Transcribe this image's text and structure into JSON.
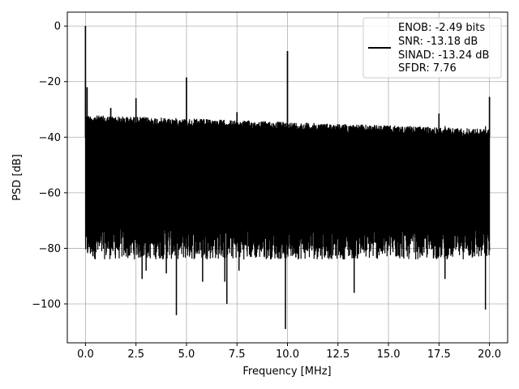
{
  "chart_data": {
    "type": "line",
    "xlabel": "Frequency [MHz]",
    "ylabel": "PSD [dB]",
    "xlim": [
      -0.9,
      20.9
    ],
    "ylim": [
      -114,
      5
    ],
    "xticks": [
      0.0,
      2.5,
      5.0,
      7.5,
      10.0,
      12.5,
      15.0,
      17.5,
      20.0
    ],
    "xtick_labels": [
      "0.0",
      "2.5",
      "5.0",
      "7.5",
      "10.0",
      "12.5",
      "15.0",
      "17.5",
      "20.0"
    ],
    "yticks": [
      0,
      -20,
      -40,
      -60,
      -80,
      -100
    ],
    "ytick_labels": [
      "0",
      "−20",
      "−40",
      "−60",
      "−80",
      "−100"
    ],
    "grid": true,
    "legend_position": "top-right",
    "legend_lines": [
      "ENOB: -2.49 bits",
      "SNR: -13.18 dB",
      "SINAD: -13.24 dB",
      "SFDR: 7.76"
    ],
    "series": [
      {
        "color": "#000000",
        "x_range": [
          0.0,
          20.0
        ],
        "noise_ceiling_start": -32,
        "noise_ceiling_end": -37,
        "noise_floor_typical": -78,
        "spikes": [
          {
            "x": 0.0,
            "y": 0
          },
          {
            "x": 0.08,
            "y": -22
          },
          {
            "x": 1.25,
            "y": -29.5
          },
          {
            "x": 2.5,
            "y": -26
          },
          {
            "x": 5.0,
            "y": -18.5
          },
          {
            "x": 7.5,
            "y": -31
          },
          {
            "x": 10.0,
            "y": -9
          },
          {
            "x": 17.5,
            "y": -31.5
          },
          {
            "x": 20.0,
            "y": -25.5
          }
        ],
        "dips": [
          {
            "x": 4.5,
            "y": -104
          },
          {
            "x": 9.9,
            "y": -109
          },
          {
            "x": 7.0,
            "y": -100
          },
          {
            "x": 19.8,
            "y": -102
          },
          {
            "x": 13.3,
            "y": -96
          },
          {
            "x": 6.9,
            "y": -92
          },
          {
            "x": 5.8,
            "y": -92
          },
          {
            "x": 2.8,
            "y": -91
          },
          {
            "x": 17.8,
            "y": -91
          },
          {
            "x": 4.0,
            "y": -89
          },
          {
            "x": 7.6,
            "y": -88
          },
          {
            "x": 3.0,
            "y": -88
          }
        ]
      }
    ]
  }
}
